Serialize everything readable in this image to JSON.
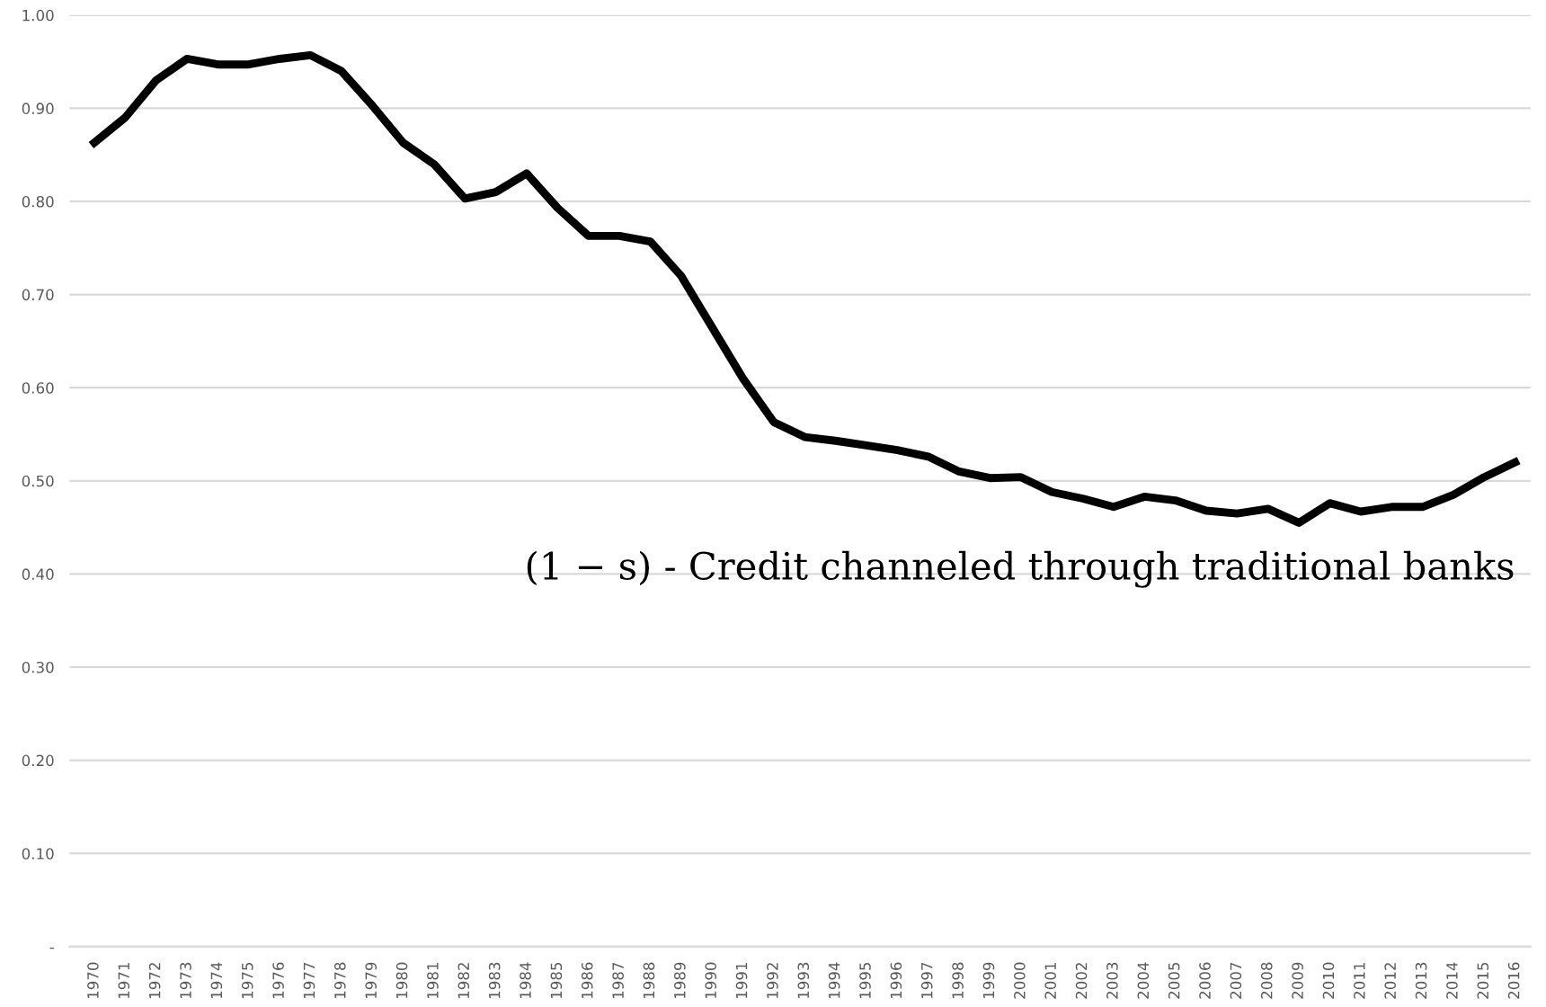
{
  "chart_data": {
    "type": "line",
    "categories": [
      "1970",
      "1971",
      "1972",
      "1973",
      "1974",
      "1975",
      "1976",
      "1977",
      "1978",
      "1979",
      "1980",
      "1981",
      "1982",
      "1983",
      "1984",
      "1985",
      "1986",
      "1987",
      "1988",
      "1989",
      "1990",
      "1991",
      "1992",
      "1993",
      "1994",
      "1995",
      "1996",
      "1997",
      "1998",
      "1999",
      "2000",
      "2001",
      "2002",
      "2003",
      "2004",
      "2005",
      "2006",
      "2007",
      "2008",
      "2009",
      "2010",
      "2011",
      "2012",
      "2013",
      "2014",
      "2015",
      "2016"
    ],
    "series": [
      {
        "name": "(1 − s) - Credit channeled through traditional banks",
        "color": "#000000",
        "values": [
          0.863,
          0.89,
          0.93,
          0.953,
          0.947,
          0.947,
          0.953,
          0.957,
          0.94,
          0.903,
          0.863,
          0.84,
          0.803,
          0.81,
          0.83,
          0.793,
          0.763,
          0.763,
          0.757,
          0.72,
          0.665,
          0.61,
          0.563,
          0.547,
          0.543,
          0.538,
          0.533,
          0.526,
          0.51,
          0.503,
          0.504,
          0.488,
          0.481,
          0.472,
          0.483,
          0.479,
          0.468,
          0.465,
          0.47,
          0.455,
          0.476,
          0.467,
          0.472,
          0.472,
          0.485,
          0.504,
          0.52
        ]
      }
    ],
    "ylim": [
      0,
      1.0
    ],
    "yticks": [
      {
        "value": 0,
        "label": "-"
      },
      {
        "value": 0.1,
        "label": "0.10"
      },
      {
        "value": 0.2,
        "label": "0.20"
      },
      {
        "value": 0.3,
        "label": "0.30"
      },
      {
        "value": 0.4,
        "label": "0.40"
      },
      {
        "value": 0.5,
        "label": "0.50"
      },
      {
        "value": 0.6,
        "label": "0.60"
      },
      {
        "value": 0.7,
        "label": "0.70"
      },
      {
        "value": 0.8,
        "label": "0.80"
      },
      {
        "value": 0.9,
        "label": "0.90"
      },
      {
        "value": 1.0,
        "label": "1.00"
      }
    ],
    "grid": "y",
    "marker": "none",
    "line_style": "solid",
    "legend": false
  }
}
